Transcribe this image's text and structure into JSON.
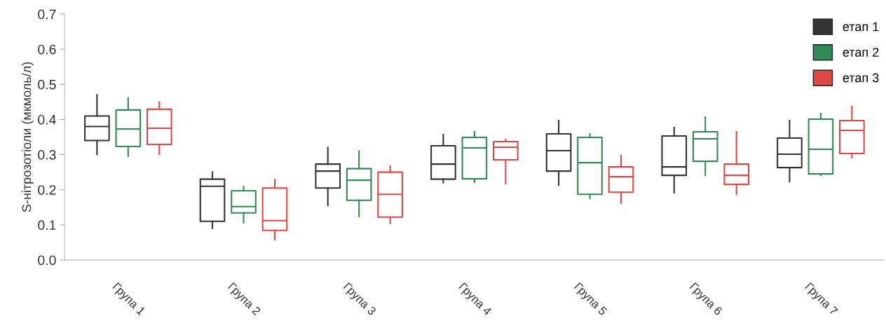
{
  "chart_data": {
    "type": "box",
    "ylabel": "S-нітрозотіоли (мкмоль/л)",
    "categories": [
      "Група 1",
      "Група 2",
      "Група 3",
      "Група 4",
      "Група 5",
      "Група 6",
      "Група 7"
    ],
    "ylim": [
      0,
      0.7
    ],
    "yticks": [
      {
        "value": 0,
        "label": "0.0"
      },
      0.1,
      0.2,
      0.3,
      0.4,
      0.5,
      0.6,
      0.7
    ],
    "grid": false,
    "legend": "top right",
    "series": [
      {
        "name": "етап 1",
        "color": "#333333",
        "boxes": [
          {
            "low": 0.3,
            "q1": 0.34,
            "median": 0.38,
            "q3": 0.41,
            "high": 0.47
          },
          {
            "low": 0.09,
            "q1": 0.11,
            "median": 0.21,
            "q3": 0.23,
            "high": 0.25
          },
          {
            "low": 0.155,
            "q1": 0.205,
            "median": 0.253,
            "q3": 0.273,
            "high": 0.32
          },
          {
            "low": 0.22,
            "q1": 0.23,
            "median": 0.273,
            "q3": 0.325,
            "high": 0.357
          },
          {
            "low": 0.213,
            "q1": 0.253,
            "median": 0.311,
            "q3": 0.359,
            "high": 0.397
          },
          {
            "low": 0.191,
            "q1": 0.241,
            "median": 0.265,
            "q3": 0.353,
            "high": 0.377
          },
          {
            "low": 0.223,
            "q1": 0.263,
            "median": 0.301,
            "q3": 0.347,
            "high": 0.397
          }
        ]
      },
      {
        "name": "етап 2",
        "color": "#2e8b57",
        "boxes": [
          {
            "low": 0.295,
            "q1": 0.323,
            "median": 0.373,
            "q3": 0.427,
            "high": 0.461
          },
          {
            "low": 0.106,
            "q1": 0.134,
            "median": 0.152,
            "q3": 0.197,
            "high": 0.209
          },
          {
            "low": 0.124,
            "q1": 0.17,
            "median": 0.227,
            "q3": 0.26,
            "high": 0.31
          },
          {
            "low": 0.221,
            "q1": 0.231,
            "median": 0.319,
            "q3": 0.349,
            "high": 0.365
          },
          {
            "low": 0.175,
            "q1": 0.187,
            "median": 0.277,
            "q3": 0.349,
            "high": 0.359
          },
          {
            "low": 0.241,
            "q1": 0.281,
            "median": 0.345,
            "q3": 0.365,
            "high": 0.407
          },
          {
            "low": 0.241,
            "q1": 0.245,
            "median": 0.315,
            "q3": 0.401,
            "high": 0.417
          }
        ]
      },
      {
        "name": "етап 3",
        "color": "#e04848",
        "boxes": [
          {
            "low": 0.301,
            "q1": 0.329,
            "median": 0.375,
            "q3": 0.429,
            "high": 0.449
          },
          {
            "low": 0.058,
            "q1": 0.084,
            "median": 0.112,
            "q3": 0.205,
            "high": 0.229
          },
          {
            "low": 0.104,
            "q1": 0.122,
            "median": 0.187,
            "q3": 0.25,
            "high": 0.267
          },
          {
            "low": 0.217,
            "q1": 0.285,
            "median": 0.321,
            "q3": 0.337,
            "high": 0.343
          },
          {
            "low": 0.162,
            "q1": 0.193,
            "median": 0.237,
            "q3": 0.265,
            "high": 0.297
          },
          {
            "low": 0.187,
            "q1": 0.215,
            "median": 0.241,
            "q3": 0.273,
            "high": 0.365
          },
          {
            "low": 0.291,
            "q1": 0.303,
            "median": 0.369,
            "q3": 0.397,
            "high": 0.437
          }
        ]
      }
    ]
  }
}
